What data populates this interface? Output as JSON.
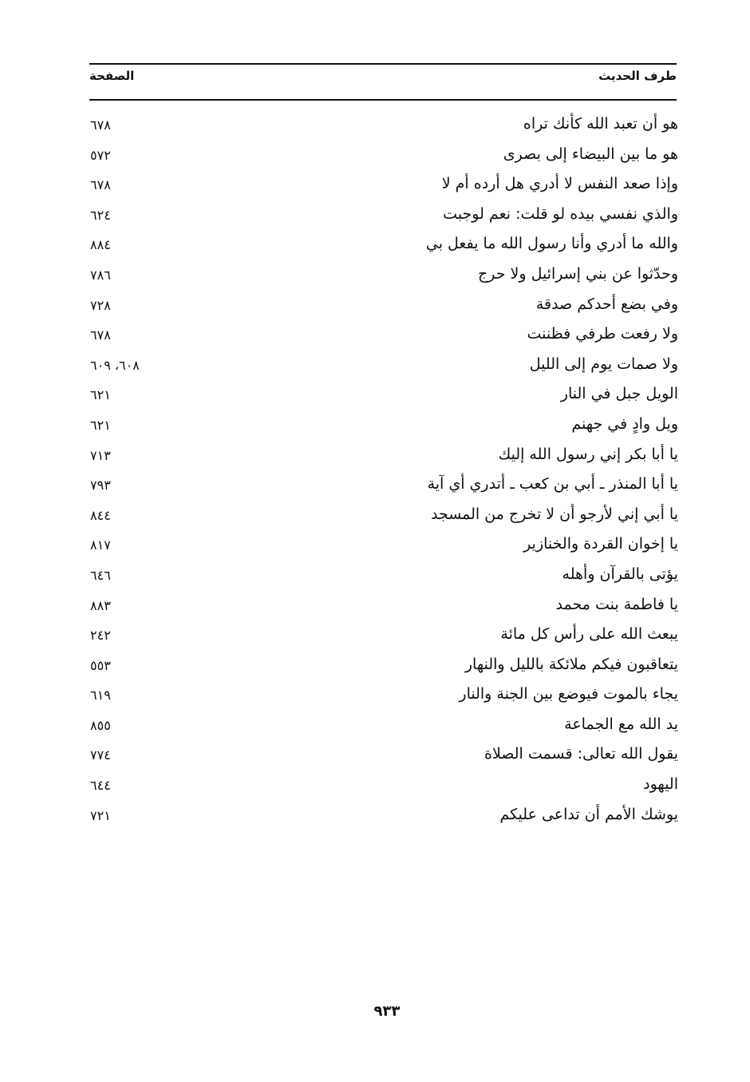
{
  "header": {
    "col_hadith": "طرف الحديث",
    "col_page": "الصفحة"
  },
  "rows": [
    {
      "hadith": "هو أن تعبد الله كأنك تراه",
      "page": "٦٧٨"
    },
    {
      "hadith": "هو ما بين البيضاء إلى بصرى",
      "page": "٥٧٢"
    },
    {
      "hadith": "وإذا صعد النفس لا أدري هل أرده أم لا",
      "page": "٦٧٨"
    },
    {
      "hadith": "والذي نفسي بيده لو قلت: نعم لوجبت",
      "page": "٦٢٤"
    },
    {
      "hadith": "والله ما أدري وأنا رسول الله ما يفعل بي",
      "page": "٨٨٤"
    },
    {
      "hadith": "وحدّثوا عن بني إسرائيل ولا حرج",
      "page": "٧٨٦"
    },
    {
      "hadith": "وفي بضع أحدكم صدقة",
      "page": "٧٢٨"
    },
    {
      "hadith": "ولا رفعت طرفي فظننت",
      "page": "٦٧٨"
    },
    {
      "hadith": "ولا صمات يوم إلى الليل",
      "page": "٦٠٨، ٦٠٩"
    },
    {
      "hadith": "الويل جبل في النار",
      "page": "٦٢١"
    },
    {
      "hadith": "ويل وادٍ في جهنم",
      "page": "٦٢١"
    },
    {
      "hadith": "يا أبا بكر إني رسول الله إليك",
      "page": "٧١٣"
    },
    {
      "hadith": "يا أبا المنذر ـ أبي بن كعب ـ أتدري أي آية",
      "page": "٧٩٣"
    },
    {
      "hadith": "يا أبي إني لأرجو أن لا تخرج من المسجد",
      "page": "٨٤٤"
    },
    {
      "hadith": "يا إخوان القردة والخنازير",
      "page": "٨١٧"
    },
    {
      "hadith": "يؤتى بالقرآن وأهله",
      "page": "٦٤٦"
    },
    {
      "hadith": "يا فاطمة بنت محمد",
      "page": "٨٨٣"
    },
    {
      "hadith": "يبعث الله على رأس كل مائة",
      "page": "٢٤٢"
    },
    {
      "hadith": "يتعاقبون فيكم ملائكة بالليل والنهار",
      "page": "٥٥٣"
    },
    {
      "hadith": "يجاء بالموت فيوضع بين الجنة والنار",
      "page": "٦١٩"
    },
    {
      "hadith": "يد الله مع الجماعة",
      "page": "٨٥٥"
    },
    {
      "hadith": "يقول الله تعالى: قسمت الصلاة",
      "page": "٧٧٤"
    },
    {
      "hadith": "اليهود",
      "page": "٦٤٤"
    },
    {
      "hadith": "يوشك الأمم أن تداعى عليكم",
      "page": "٧٢١"
    }
  ],
  "folio": "٩٣٣"
}
